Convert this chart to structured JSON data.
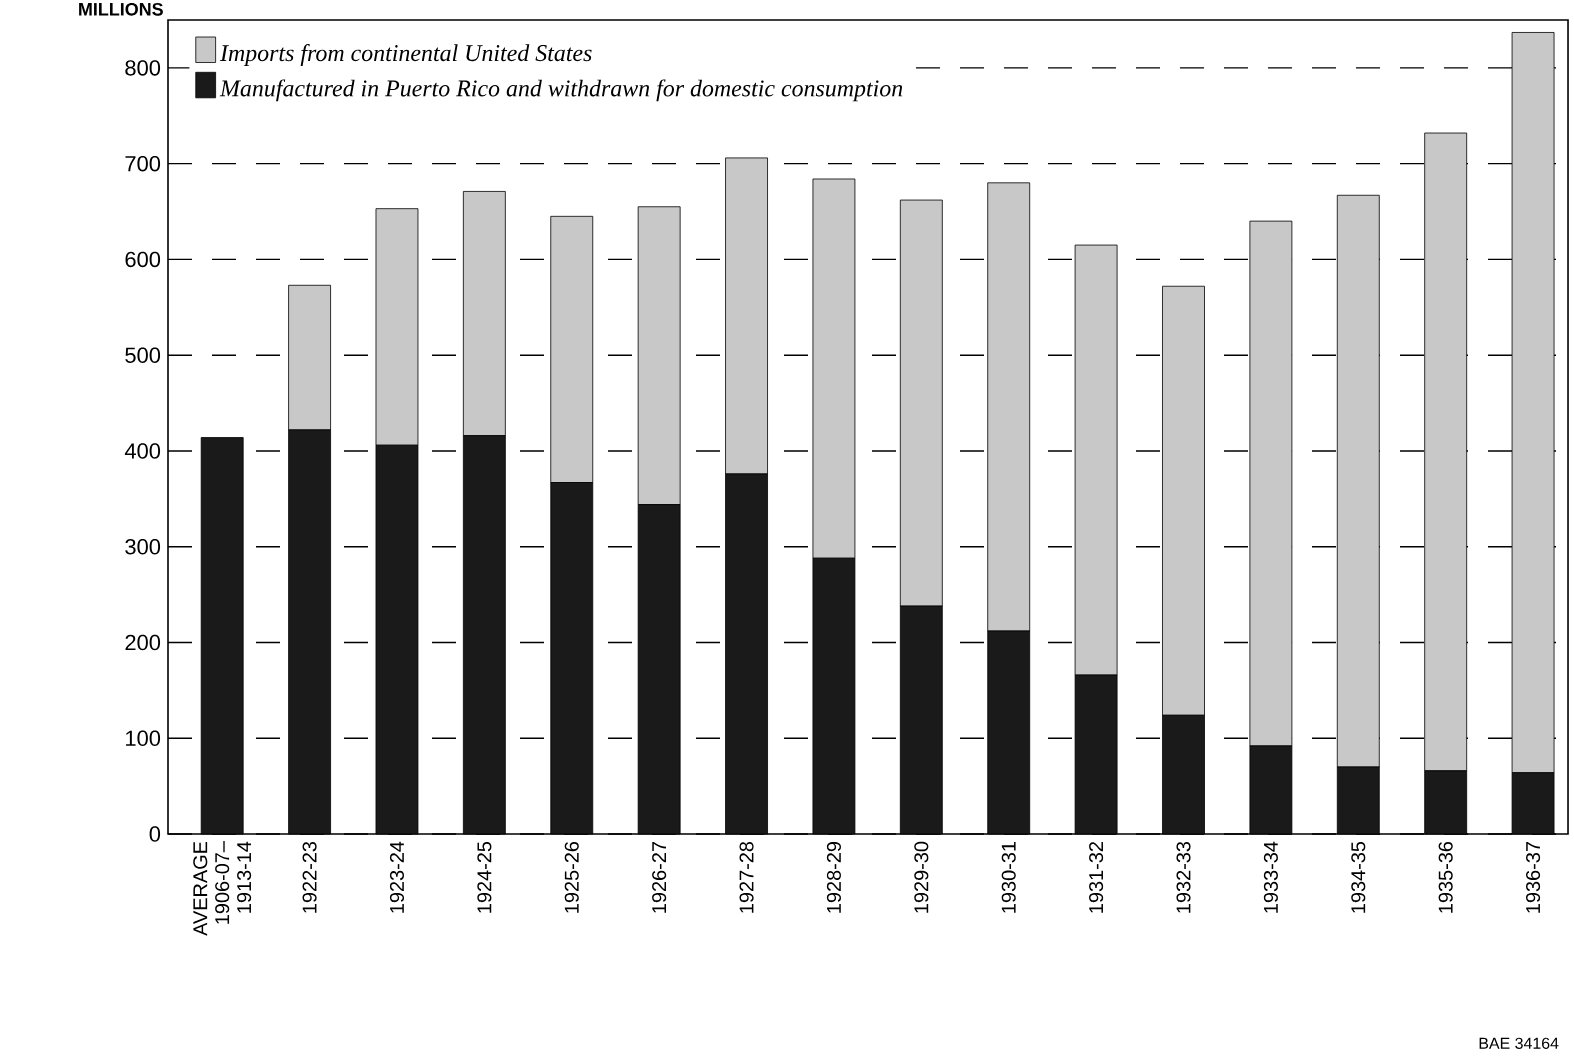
{
  "chart_data": {
    "type": "bar",
    "stacked": true,
    "ylabel": "MILLIONS",
    "categories": [
      "AVERAGE 1906-07– 1913-14",
      "1922-23",
      "1923-24",
      "1924-25",
      "1925-26",
      "1926-27",
      "1927-28",
      "1928-29",
      "1929-30",
      "1930-31",
      "1931-32",
      "1932-33",
      "1933-34",
      "1934-35",
      "1935-36",
      "1936-37"
    ],
    "series": [
      {
        "name": "Manufactured in Puerto Rico and withdrawn for domestic consumption",
        "color": "#1a1a1a",
        "values": [
          414,
          422,
          406,
          416,
          367,
          344,
          376,
          288,
          238,
          212,
          166,
          124,
          92,
          70,
          66,
          64
        ]
      },
      {
        "name": "Imports from continental United States",
        "color": "#c8c8c8",
        "values": [
          0,
          151,
          247,
          255,
          278,
          311,
          330,
          396,
          424,
          468,
          449,
          448,
          548,
          597,
          666,
          773
        ]
      }
    ],
    "ylim": [
      0,
      850
    ],
    "yticks": [
      0,
      100,
      200,
      300,
      400,
      500,
      600,
      700,
      800
    ],
    "grid": "y",
    "legend": "top left",
    "annotations": [
      "BAE 34164"
    ]
  }
}
